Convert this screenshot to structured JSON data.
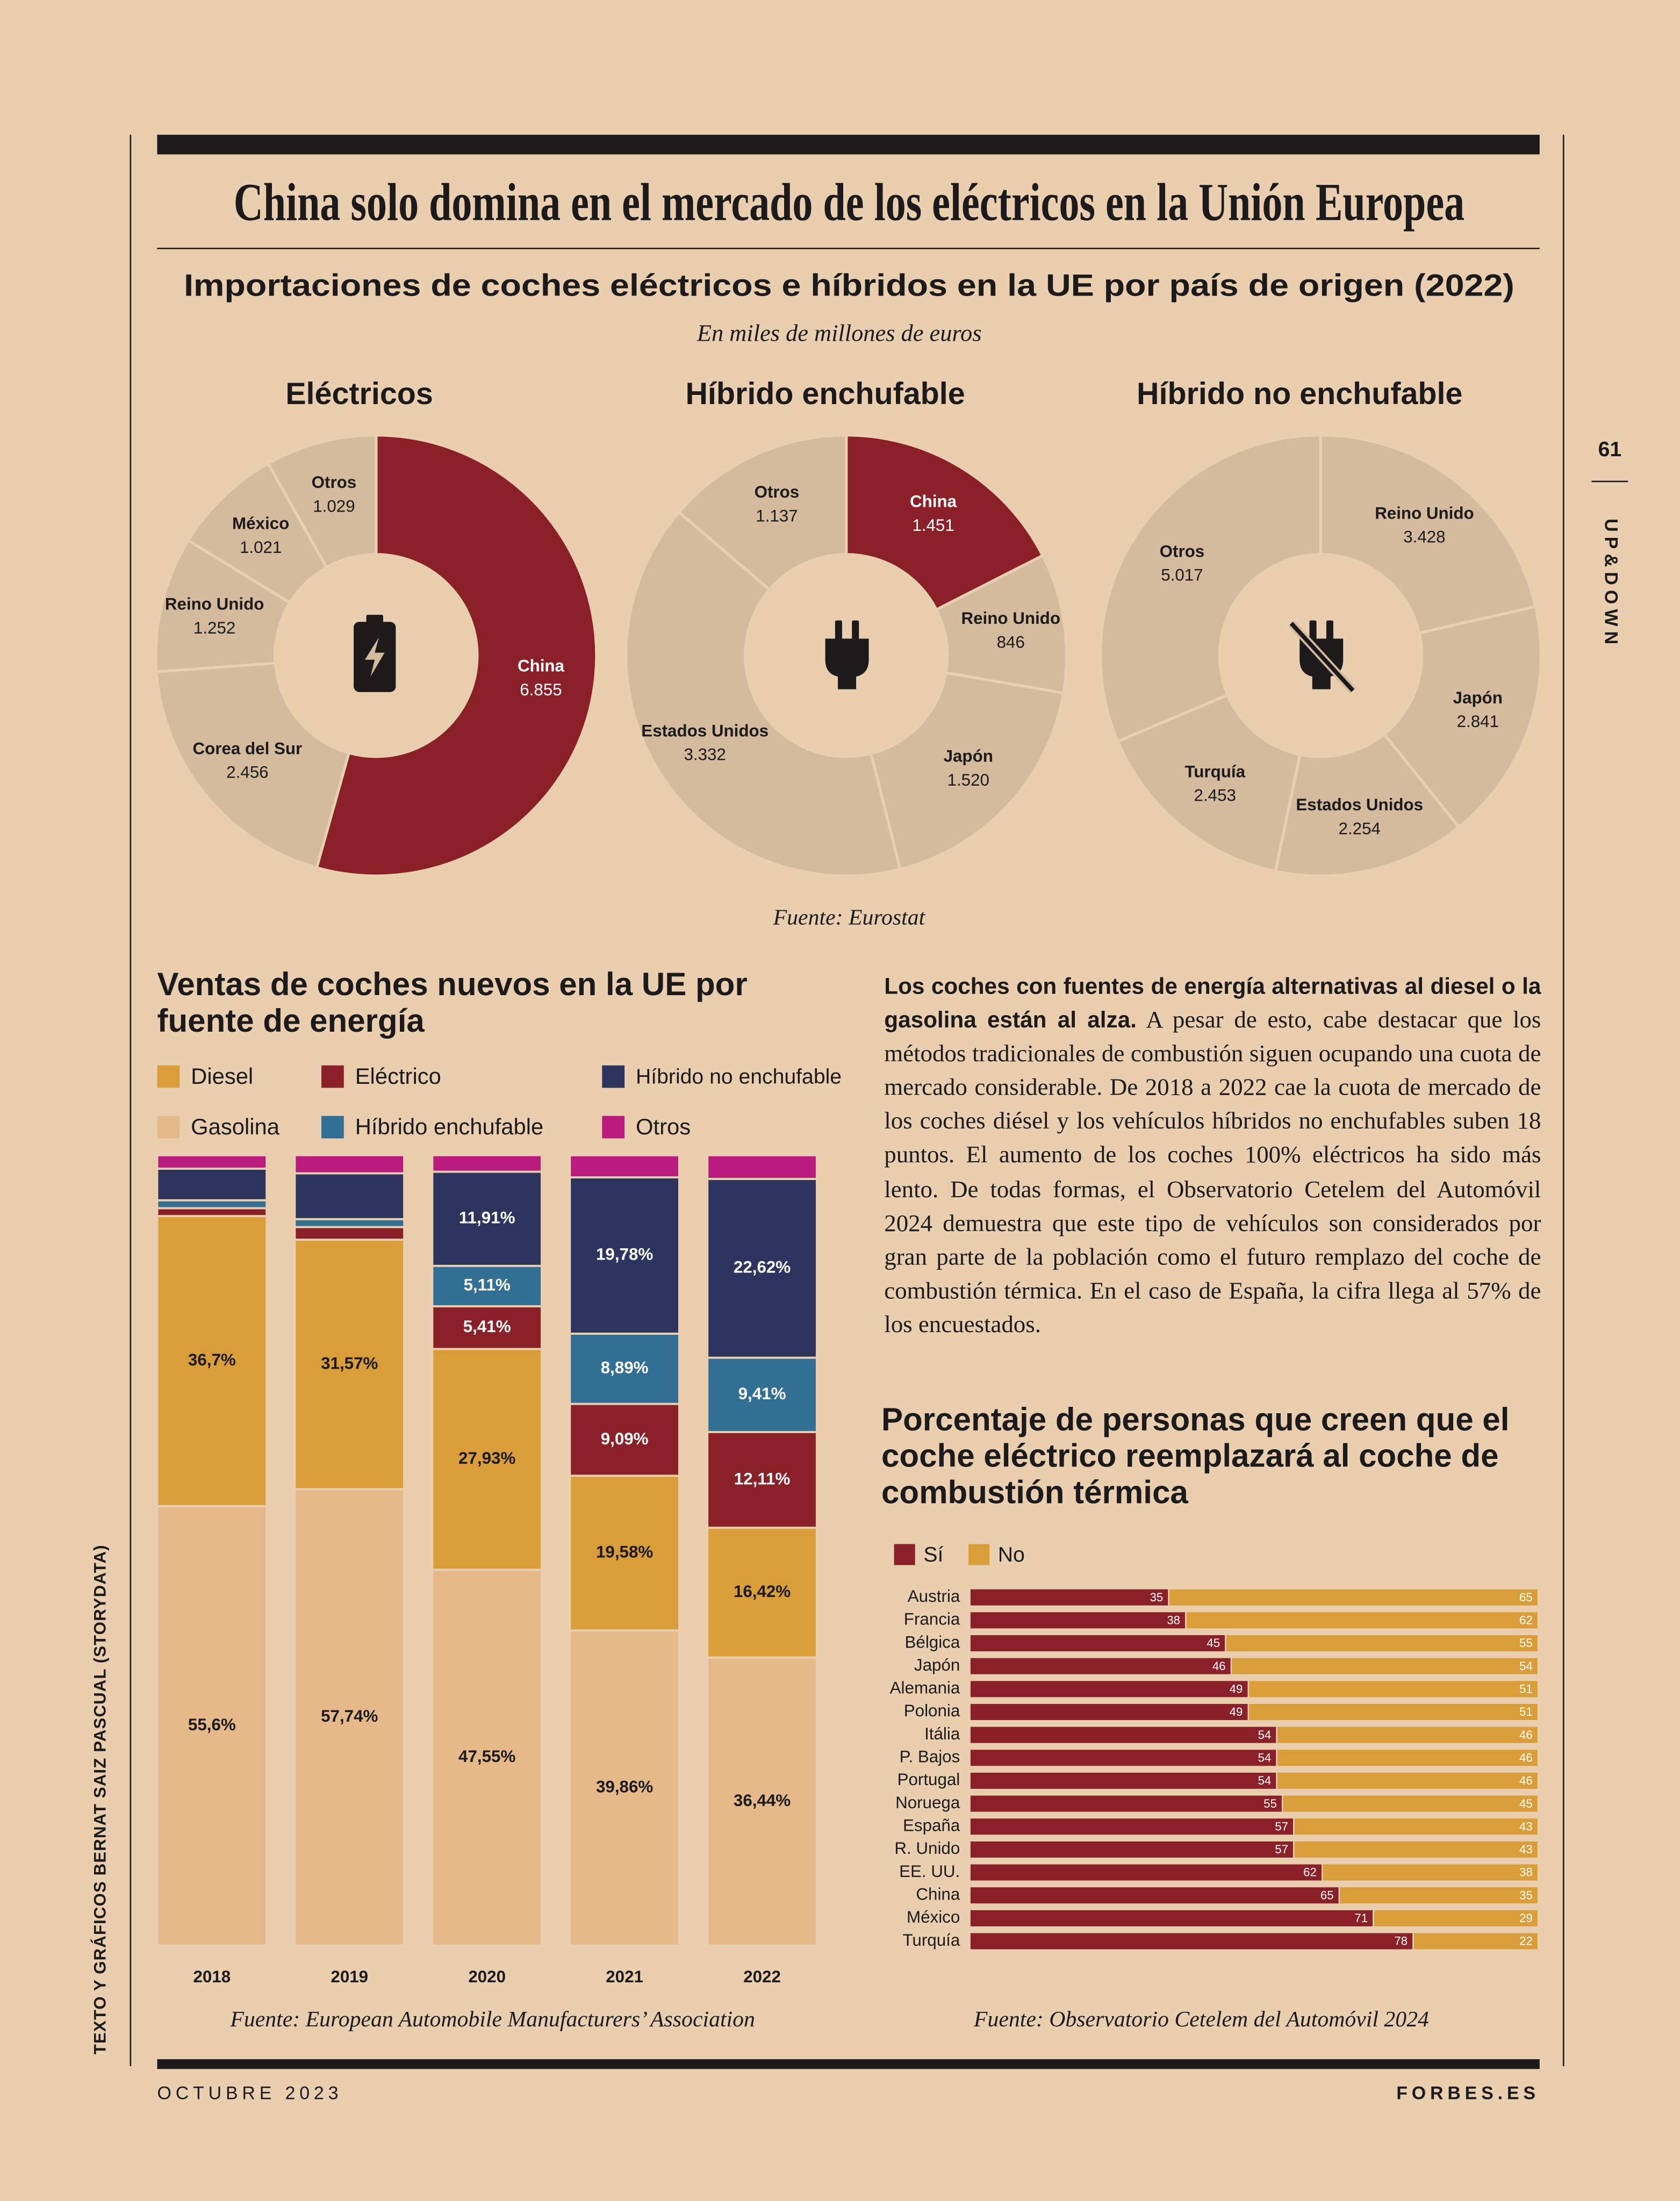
{
  "header": {
    "title": "China solo domina en el mercado de los eléctricos en la Unión Europea",
    "page_number": "61",
    "section": "UP&DOWN",
    "credit": "TEXTO Y GRÁFICOS BERNAT SAIZ PASCUAL (STORYDATA)"
  },
  "imports": {
    "title": "Importaciones de coches eléctricos e híbridos en la UE por país de origen (2022)",
    "subtitle": "En miles de millones de euros",
    "source": "Fuente: Eurostat"
  },
  "chart_data": [
    {
      "type": "pie",
      "title": "Eléctricos",
      "categories": [
        "China",
        "Corea del Sur",
        "Reino Unido",
        "México",
        "Otros"
      ],
      "values": [
        6855,
        2456,
        1252,
        1021,
        1029
      ],
      "value_labels": [
        "6.855",
        "2.456",
        "1.252",
        "1.021",
        "1.029"
      ],
      "colors": [
        "#8a2129",
        "#d4bb9e",
        "#d4bb9e",
        "#d4bb9e",
        "#d4bb9e"
      ]
    },
    {
      "type": "pie",
      "title": "Híbrido enchufable",
      "categories": [
        "China",
        "Reino Unido",
        "Japón",
        "Estados Unidos",
        "Otros"
      ],
      "values": [
        1451,
        846,
        1520,
        3332,
        1137
      ],
      "value_labels": [
        "1.451",
        "846",
        "1.520",
        "3.332",
        "1.137"
      ],
      "colors": [
        "#8a2129",
        "#d4bb9e",
        "#d4bb9e",
        "#d4bb9e",
        "#d4bb9e"
      ]
    },
    {
      "type": "pie",
      "title": "Híbrido no enchufable",
      "categories": [
        "Reino Unido",
        "Japón",
        "Estados Unidos",
        "Turquía",
        "Otros"
      ],
      "values": [
        3428,
        2841,
        2254,
        2453,
        5017
      ],
      "value_labels": [
        "3.428",
        "2.841",
        "2.254",
        "2.453",
        "5.017"
      ],
      "colors": [
        "#d4bb9e",
        "#d4bb9e",
        "#d4bb9e",
        "#d4bb9e",
        "#d4bb9e"
      ]
    },
    {
      "type": "bar",
      "stacked": true,
      "title": "Ventas de coches nuevos en la UE por fuente de energía",
      "categories": [
        "2018",
        "2019",
        "2020",
        "2021",
        "2022"
      ],
      "ylim": [
        0,
        100
      ],
      "series": [
        {
          "name": "Gasolina",
          "color": "#e5b98a",
          "values": [
            55.6,
            57.74,
            47.55,
            39.86,
            36.44
          ],
          "value_labels": [
            "55,6%",
            "57,74%",
            "47,55%",
            "39,86%",
            "36,44%"
          ]
        },
        {
          "name": "Diesel",
          "color": "#d99e3a",
          "values": [
            36.7,
            31.57,
            27.93,
            19.58,
            16.42
          ],
          "value_labels": [
            "36,7%",
            "31,57%",
            "27,93%",
            "19,58%",
            "16,42%"
          ]
        },
        {
          "name": "Eléctrico",
          "color": "#8a2129",
          "values": [
            1.0,
            1.6,
            5.41,
            9.09,
            12.11
          ],
          "value_labels": [
            null,
            null,
            "5,41%",
            "9,09%",
            "12,11%"
          ]
        },
        {
          "name": "Híbrido enchufable",
          "color": "#336e94",
          "values": [
            1.0,
            1.0,
            5.11,
            8.89,
            9.41
          ],
          "value_labels": [
            null,
            null,
            "5,11%",
            "8,89%",
            "9,41%"
          ]
        },
        {
          "name": "Híbrido no enchufable",
          "color": "#2d345e",
          "values": [
            4.0,
            5.8,
            11.91,
            19.78,
            22.62
          ],
          "value_labels": [
            null,
            null,
            "11,91%",
            "19,78%",
            "22,62%"
          ]
        },
        {
          "name": "Otros",
          "color": "#b91c7c",
          "values": [
            1.7,
            2.3,
            2.1,
            2.8,
            3.0
          ],
          "value_labels": [
            null,
            null,
            null,
            null,
            null
          ]
        }
      ],
      "source": "Fuente: European Automobile Manufacturers’ Association"
    },
    {
      "type": "bar",
      "orientation": "horizontal",
      "stacked": true,
      "title": "Porcentaje de personas que creen que el coche eléctrico reemplazará al coche de combustión térmica",
      "categories": [
        "Austria",
        "Francia",
        "Bélgica",
        "Japón",
        "Alemania",
        "Polonia",
        "Itália",
        "P. Bajos",
        "Portugal",
        "Noruega",
        "España",
        "R. Unido",
        "EE. UU.",
        "China",
        "México",
        "Turquía"
      ],
      "xlim": [
        0,
        100
      ],
      "series": [
        {
          "name": "Sí",
          "color": "#8a2129",
          "values": [
            35,
            38,
            45,
            46,
            49,
            49,
            54,
            54,
            54,
            55,
            57,
            57,
            62,
            65,
            71,
            78
          ]
        },
        {
          "name": "No",
          "color": "#d99e3a",
          "values": [
            65,
            62,
            55,
            54,
            51,
            51,
            46,
            46,
            46,
            45,
            43,
            43,
            38,
            35,
            29,
            22
          ]
        }
      ],
      "source": "Fuente: Observatorio Cetelem del Automóvil 2024"
    }
  ],
  "article": {
    "lead": "Los coches con fuentes de energía alternativas al diesel o la gasolina están al alza.",
    "body": "A pesar de esto, cabe destacar que los métodos tradicionales de combustión siguen ocupando una cuota de mercado considerable. De 2018 a 2022 cae la cuota de mercado de los coches diésel y los vehículos híbridos no enchufables suben 18 puntos. El aumento de los coches 100% eléctricos ha sido más lento. De todas formas, el Observatorio Cetelem del Automóvil 2024 demuestra que este tipo de vehículos son considerados por gran parte de la población como el futuro remplazo del coche de combustión térmica. En el caso de España, la cifra llega al 57% de los encuestados."
  },
  "footer": {
    "date": "OCTUBRE 2023",
    "site": "FORBES.ES"
  }
}
